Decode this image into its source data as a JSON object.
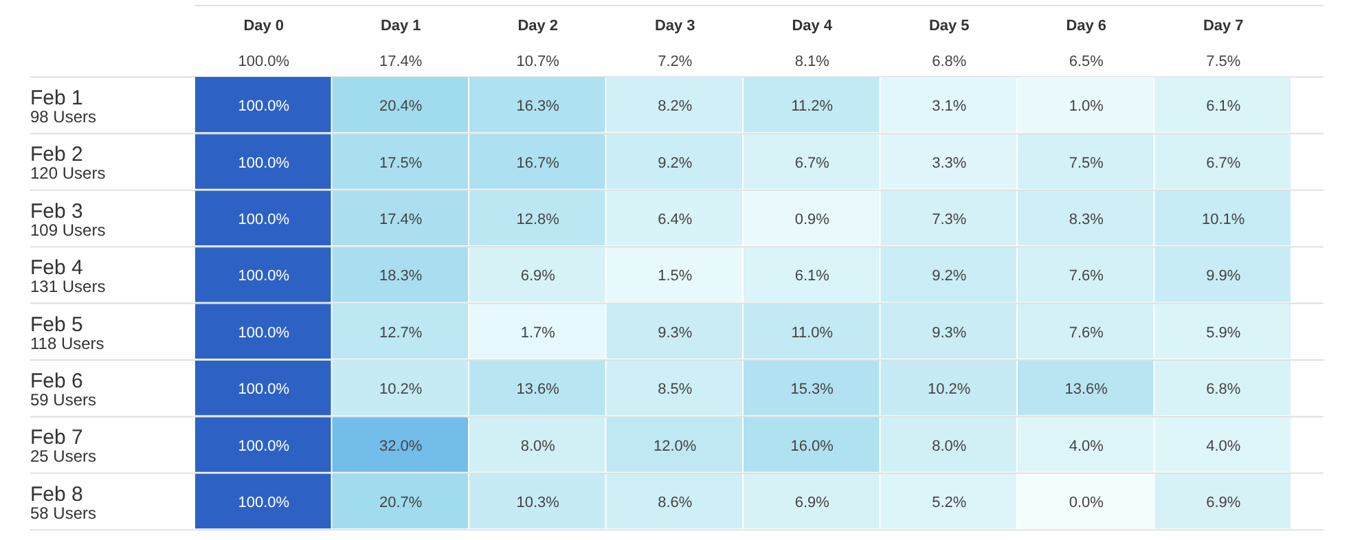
{
  "chart_data": {
    "type": "heatmap",
    "categories": [
      "Day 0",
      "Day 1",
      "Day 2",
      "Day 3",
      "Day 4",
      "Day 5",
      "Day 6",
      "Day 7"
    ],
    "y_categories": [
      "Feb 1\n98 Users",
      "Feb 2\n120 Users",
      "Feb 3\n109 Users",
      "Feb 4\n131 Users",
      "Feb 5\n118 Users",
      "Feb 6\n59 Users",
      "Feb 7\n25 Users",
      "Feb 8\n58 Users"
    ],
    "totals": [
      "100.0%",
      "17.4%",
      "10.7%",
      "7.2%",
      "8.1%",
      "6.8%",
      "6.5%",
      "7.5%"
    ],
    "cells": [
      [
        100.0,
        20.4,
        16.3,
        8.2,
        11.2,
        3.1,
        1.0,
        6.1
      ],
      [
        100.0,
        17.5,
        16.7,
        9.2,
        6.7,
        3.3,
        7.5,
        6.7
      ],
      [
        100.0,
        17.4,
        12.8,
        6.4,
        0.9,
        7.3,
        8.3,
        10.1
      ],
      [
        100.0,
        18.3,
        6.9,
        1.5,
        6.1,
        9.2,
        7.6,
        9.9
      ],
      [
        100.0,
        12.7,
        1.7,
        9.3,
        11.0,
        9.3,
        7.6,
        5.9
      ],
      [
        100.0,
        10.2,
        13.6,
        8.5,
        15.3,
        10.2,
        13.6,
        6.8
      ],
      [
        100.0,
        32.0,
        8.0,
        12.0,
        16.0,
        8.0,
        4.0,
        4.0
      ],
      [
        100.0,
        20.7,
        10.3,
        8.6,
        6.9,
        5.2,
        0.0,
        6.9
      ]
    ],
    "cell_labels": [
      [
        "100.0%",
        "20.4%",
        "16.3%",
        "8.2%",
        "11.2%",
        "3.1%",
        "1.0%",
        "6.1%"
      ],
      [
        "100.0%",
        "17.5%",
        "16.7%",
        "9.2%",
        "6.7%",
        "3.3%",
        "7.5%",
        "6.7%"
      ],
      [
        "100.0%",
        "17.4%",
        "12.8%",
        "6.4%",
        "0.9%",
        "7.3%",
        "8.3%",
        "10.1%"
      ],
      [
        "100.0%",
        "18.3%",
        "6.9%",
        "1.5%",
        "6.1%",
        "9.2%",
        "7.6%",
        "9.9%"
      ],
      [
        "100.0%",
        "12.7%",
        "1.7%",
        "9.3%",
        "11.0%",
        "9.3%",
        "7.6%",
        "5.9%"
      ],
      [
        "100.0%",
        "10.2%",
        "13.6%",
        "8.5%",
        "15.3%",
        "10.2%",
        "13.6%",
        "6.8%"
      ],
      [
        "100.0%",
        "32.0%",
        "8.0%",
        "12.0%",
        "16.0%",
        "8.0%",
        "4.0%",
        "4.0%"
      ],
      [
        "100.0%",
        "20.7%",
        "10.3%",
        "8.6%",
        "6.9%",
        "5.2%",
        "0.0%",
        "6.9%"
      ]
    ]
  }
}
